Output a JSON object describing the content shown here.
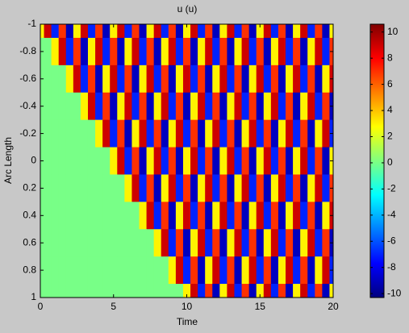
{
  "chart_data": {
    "type": "heatmap",
    "title": "u (u)",
    "x_label": "Time",
    "y_label": "Arc Length",
    "x": [
      0,
      0.5,
      1,
      1.5,
      2,
      2.5,
      3,
      3.5,
      4,
      4.5,
      5,
      5.5,
      6,
      6.5,
      7,
      7.5,
      8,
      8.5,
      9,
      9.5,
      10,
      10.5,
      11,
      11.5,
      12,
      12.5,
      13,
      13.5,
      14,
      14.5,
      15,
      15.5,
      16,
      16.5,
      17,
      17.5,
      18,
      18.5,
      19,
      19.5,
      20
    ],
    "y": [
      -1,
      -0.8,
      -0.6,
      -0.4,
      -0.2,
      0,
      0.2,
      0.4,
      0.6,
      0.8,
      1
    ],
    "z": [
      [
        3,
        9,
        -7,
        7,
        -9,
        3,
        9,
        -7,
        7,
        -9,
        3,
        9,
        -7,
        7,
        -9,
        3,
        9,
        -7,
        7,
        -9,
        3,
        9,
        -7,
        7,
        -9,
        3,
        9,
        -7,
        7,
        -9,
        3,
        9,
        -7,
        7,
        -9,
        3,
        9,
        -7,
        7,
        -9,
        3
      ],
      [
        0,
        0,
        3,
        9,
        -7,
        7,
        -9,
        3,
        9,
        -7,
        7,
        -9,
        3,
        9,
        -7,
        7,
        -9,
        3,
        9,
        -7,
        7,
        -9,
        3,
        9,
        -7,
        7,
        -9,
        3,
        9,
        -7,
        7,
        -9,
        3,
        9,
        -7,
        7,
        -9,
        3,
        9,
        -7,
        7
      ],
      [
        0,
        0,
        0,
        0,
        3,
        9,
        -7,
        7,
        -9,
        3,
        9,
        -7,
        7,
        -9,
        3,
        9,
        -7,
        7,
        -9,
        3,
        9,
        -7,
        7,
        -9,
        3,
        9,
        -7,
        7,
        -9,
        3,
        9,
        -7,
        7,
        -9,
        3,
        9,
        -7,
        7,
        -9,
        3,
        9
      ],
      [
        0,
        0,
        0,
        0,
        0,
        0,
        3,
        9,
        -7,
        7,
        -9,
        3,
        9,
        -7,
        7,
        -9,
        3,
        9,
        -7,
        7,
        -9,
        3,
        9,
        -7,
        7,
        -9,
        3,
        9,
        -7,
        7,
        -9,
        3,
        9,
        -7,
        7,
        -9,
        3,
        9,
        -7,
        7,
        -9
      ],
      [
        0,
        0,
        0,
        0,
        0,
        0,
        0,
        0,
        3,
        9,
        -7,
        7,
        -9,
        3,
        9,
        -7,
        7,
        -9,
        3,
        9,
        -7,
        7,
        -9,
        3,
        9,
        -7,
        7,
        -9,
        3,
        9,
        -7,
        7,
        -9,
        3,
        9,
        -7,
        7,
        -9,
        3,
        9,
        -7
      ],
      [
        0,
        0,
        0,
        0,
        0,
        0,
        0,
        0,
        0,
        0,
        3,
        9,
        -7,
        7,
        -9,
        3,
        9,
        -7,
        7,
        -9,
        3,
        9,
        -7,
        7,
        -9,
        3,
        9,
        -7,
        7,
        -9,
        3,
        9,
        -7,
        7,
        -9,
        3,
        9,
        -7,
        7,
        -9,
        3
      ],
      [
        0,
        0,
        0,
        0,
        0,
        0,
        0,
        0,
        0,
        0,
        0,
        0,
        3,
        9,
        -7,
        7,
        -9,
        3,
        9,
        -7,
        7,
        -9,
        3,
        9,
        -7,
        7,
        -9,
        3,
        9,
        -7,
        7,
        -9,
        3,
        9,
        -7,
        7,
        -9,
        3,
        9,
        -7,
        7
      ],
      [
        0,
        0,
        0,
        0,
        0,
        0,
        0,
        0,
        0,
        0,
        0,
        0,
        0,
        0,
        3,
        9,
        -7,
        7,
        -9,
        3,
        9,
        -7,
        7,
        -9,
        3,
        9,
        -7,
        7,
        -9,
        3,
        9,
        -7,
        7,
        -9,
        3,
        9,
        -7,
        7,
        -9,
        3,
        9
      ],
      [
        0,
        0,
        0,
        0,
        0,
        0,
        0,
        0,
        0,
        0,
        0,
        0,
        0,
        0,
        0,
        0,
        3,
        9,
        -7,
        7,
        -9,
        3,
        9,
        -7,
        7,
        -9,
        3,
        9,
        -7,
        7,
        -9,
        3,
        9,
        -7,
        7,
        -9,
        3,
        9,
        -7,
        7,
        -9
      ],
      [
        0,
        0,
        0,
        0,
        0,
        0,
        0,
        0,
        0,
        0,
        0,
        0,
        0,
        0,
        0,
        0,
        0,
        0,
        3,
        9,
        -7,
        7,
        -9,
        3,
        9,
        -7,
        7,
        -9,
        3,
        9,
        -7,
        7,
        -9,
        3,
        9,
        -7,
        7,
        -9,
        3,
        9,
        -7
      ],
      [
        0,
        0,
        0,
        0,
        0,
        0,
        0,
        0,
        0,
        0,
        0,
        0,
        0,
        0,
        0,
        0,
        0,
        0,
        0,
        0,
        3,
        9,
        -7,
        7,
        -9,
        3,
        9,
        -7,
        7,
        -9,
        3,
        9,
        -7,
        7,
        -9,
        3,
        9,
        -7,
        7,
        -9,
        3
      ]
    ],
    "xlim": [
      0,
      20
    ],
    "xticks": [
      0,
      5,
      10,
      15,
      20
    ],
    "ylim": [
      -1,
      1
    ],
    "yticks": [
      -1,
      -0.8,
      -0.6,
      -0.4,
      -0.2,
      0,
      0.2,
      0.4,
      0.6,
      0.8,
      1
    ],
    "y_reversed": true,
    "colormap": "jet",
    "clim": [
      -10.3,
      10.6
    ],
    "colorbar_ticks": [
      -10,
      -8,
      -6,
      -4,
      -2,
      0,
      2,
      4,
      6,
      8,
      10
    ]
  }
}
